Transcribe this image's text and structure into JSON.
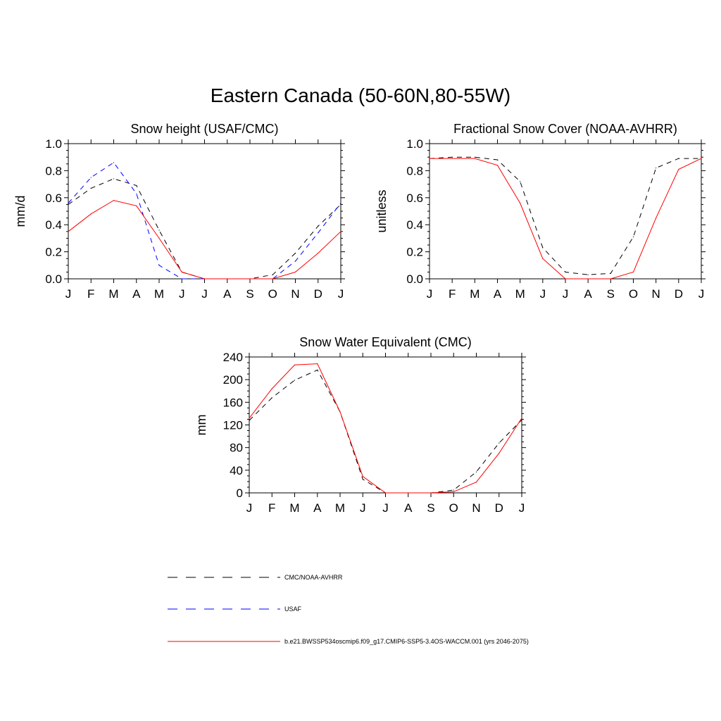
{
  "page_title": "Eastern Canada (50-60N,80-55W)",
  "legend": [
    {
      "label": "CMC/NOAA-AVHRR",
      "color": "#000000",
      "dash": "dashed"
    },
    {
      "label": "USAF",
      "color": "#0000ff",
      "dash": "dashed"
    },
    {
      "label": "b.e21.BWSSP534oscmip6.f09_g17.CMIP6-SSP5-3.4OS-WACCM.001 (yrs 2046-2075)",
      "color": "#ff0000",
      "dash": "solid"
    }
  ],
  "chart_data": [
    {
      "type": "line",
      "title": "Snow height (USAF/CMC)",
      "xlabel": "",
      "ylabel": "mm/d",
      "categories": [
        "J",
        "F",
        "M",
        "A",
        "M",
        "J",
        "J",
        "A",
        "S",
        "O",
        "N",
        "D",
        "J"
      ],
      "ylim": [
        0,
        1.0
      ],
      "yticks": [
        "0.0",
        "0.2",
        "0.4",
        "0.6",
        "0.8",
        "1.0"
      ],
      "series": [
        {
          "name": "CMC/NOAA-AVHRR",
          "color": "#000000",
          "dash": "dashed",
          "values": [
            0.55,
            0.67,
            0.74,
            0.69,
            0.36,
            0.05,
            0.0,
            0.0,
            0.0,
            0.03,
            0.19,
            0.39,
            0.55
          ]
        },
        {
          "name": "USAF",
          "color": "#0000ff",
          "dash": "dashed",
          "values": [
            0.56,
            0.75,
            0.86,
            0.63,
            0.1,
            0.0,
            0.0,
            0.0,
            0.0,
            0.0,
            0.13,
            0.34,
            0.56
          ]
        },
        {
          "name": "b.e21.BWSSP534oscmip6.f09_g17.CMIP6-SSP5-3.4OS-WACCM.001 (yrs 2046-2075)",
          "color": "#ff0000",
          "dash": "solid",
          "values": [
            0.35,
            0.48,
            0.58,
            0.54,
            0.3,
            0.05,
            0.0,
            0.0,
            0.0,
            0.0,
            0.05,
            0.19,
            0.35
          ]
        }
      ]
    },
    {
      "type": "line",
      "title": "Fractional Snow Cover (NOAA-AVHRR)",
      "xlabel": "",
      "ylabel": "unitless",
      "categories": [
        "J",
        "F",
        "M",
        "A",
        "M",
        "J",
        "J",
        "A",
        "S",
        "O",
        "N",
        "D",
        "J"
      ],
      "ylim": [
        0,
        1.0
      ],
      "yticks": [
        "0.0",
        "0.2",
        "0.4",
        "0.6",
        "0.8",
        "1.0"
      ],
      "series": [
        {
          "name": "CMC/NOAA-AVHRR",
          "color": "#000000",
          "dash": "dashed",
          "values": [
            0.89,
            0.9,
            0.9,
            0.88,
            0.72,
            0.23,
            0.05,
            0.03,
            0.04,
            0.31,
            0.82,
            0.89,
            0.89
          ]
        },
        {
          "name": "b.e21.BWSSP534oscmip6.f09_g17.CMIP6-SSP5-3.4OS-WACCM.001 (yrs 2046-2075)",
          "color": "#ff0000",
          "dash": "solid",
          "values": [
            0.89,
            0.89,
            0.89,
            0.84,
            0.56,
            0.15,
            0.0,
            0.0,
            0.0,
            0.05,
            0.45,
            0.81,
            0.89
          ]
        }
      ]
    },
    {
      "type": "line",
      "title": "Snow Water Equivalent (CMC)",
      "xlabel": "",
      "ylabel": "mm",
      "categories": [
        "J",
        "F",
        "M",
        "A",
        "M",
        "J",
        "J",
        "A",
        "S",
        "O",
        "N",
        "D",
        "J"
      ],
      "ylim": [
        0,
        240
      ],
      "yticks": [
        "0",
        "40",
        "80",
        "120",
        "160",
        "200",
        "240"
      ],
      "series": [
        {
          "name": "CMC/NOAA-AVHRR",
          "color": "#000000",
          "dash": "dashed",
          "values": [
            128,
            168,
            199,
            217,
            143,
            24,
            0,
            0,
            0,
            5,
            37,
            88,
            129
          ]
        },
        {
          "name": "b.e21.BWSSP534oscmip6.f09_g17.CMIP6-SSP5-3.4OS-WACCM.001 (yrs 2046-2075)",
          "color": "#ff0000",
          "dash": "solid",
          "values": [
            132,
            184,
            226,
            228,
            143,
            29,
            0,
            0,
            0,
            2,
            19,
            70,
            132
          ]
        }
      ]
    }
  ]
}
